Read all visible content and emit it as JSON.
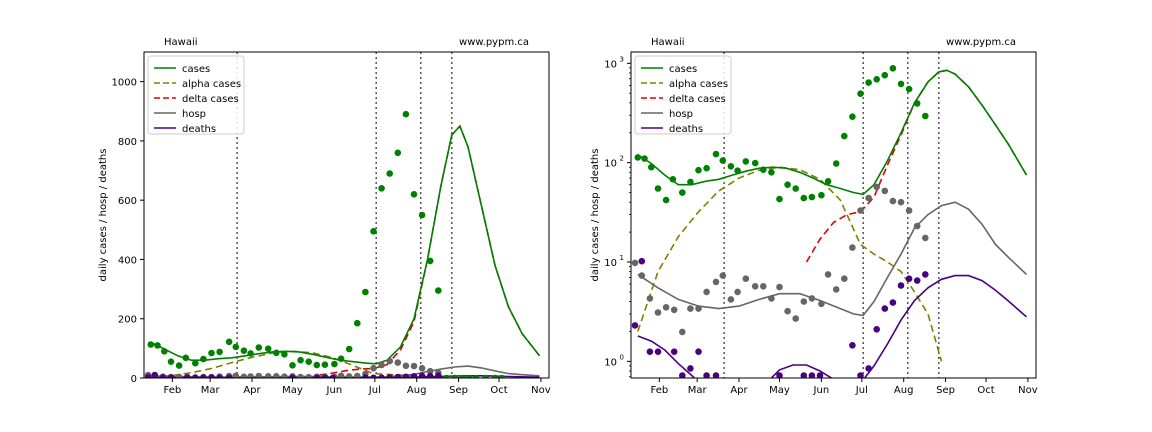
{
  "chart_data": [
    {
      "type": "line",
      "scale": "linear",
      "corner_left": "Hawaii",
      "corner_right": "www.pypm.ca",
      "ylabel": "daily cases / hosp / deaths",
      "ylim": [
        0,
        1100
      ],
      "yticks": [
        0,
        200,
        400,
        600,
        800,
        1000
      ],
      "xlim": [
        0,
        300
      ],
      "x_tick_positions": [
        21,
        49,
        80,
        110,
        141,
        171,
        202,
        233,
        263,
        294
      ],
      "x_tick_labels": [
        "Feb",
        "Mar",
        "Apr",
        "May",
        "Jun",
        "Jul",
        "Aug",
        "Sep",
        "Oct",
        "Nov"
      ],
      "vlines": [
        69,
        172,
        205,
        228
      ],
      "legend_position": "upper left",
      "legend": [
        "cases",
        "alpha cases",
        "delta cases",
        "hosp",
        "deaths"
      ],
      "colors": {
        "cases": "#008000",
        "alpha cases": "#808000",
        "delta cases": "#e00000",
        "hosp": "#666666",
        "deaths": "#4b0082"
      },
      "series": [
        {
          "name": "cases",
          "style": "solid",
          "x": [
            5,
            15,
            25,
            35,
            45,
            55,
            65,
            75,
            85,
            95,
            105,
            115,
            125,
            135,
            145,
            155,
            165,
            172,
            180,
            190,
            200,
            210,
            220,
            228,
            234,
            240,
            250,
            260,
            270,
            280,
            293
          ],
          "y": [
            120,
            98,
            75,
            60,
            60,
            65,
            68,
            75,
            82,
            88,
            90,
            88,
            80,
            70,
            60,
            55,
            50,
            48,
            60,
            105,
            200,
            400,
            650,
            820,
            850,
            780,
            580,
            380,
            240,
            150,
            75
          ]
        },
        {
          "name": "alpha cases",
          "style": "dashed",
          "x": [
            5,
            20,
            35,
            50,
            65,
            80,
            95,
            110,
            125,
            140,
            155,
            170,
            180,
            190,
            200,
            210,
            220,
            230,
            240
          ],
          "y": [
            2,
            8,
            18,
            32,
            52,
            70,
            84,
            90,
            85,
            68,
            42,
            15,
            12,
            10,
            8,
            5,
            3,
            1,
            0
          ]
        },
        {
          "name": "delta cases",
          "style": "dashed",
          "x": [
            130,
            140,
            150,
            160,
            170,
            180,
            190,
            200,
            210,
            220,
            228,
            234,
            240,
            250,
            260,
            270,
            280,
            293
          ],
          "y": [
            10,
            17,
            25,
            30,
            32,
            45,
            95,
            190,
            400,
            650,
            820,
            850,
            780,
            580,
            380,
            240,
            150,
            75
          ]
        },
        {
          "name": "hosp",
          "style": "solid",
          "x": [
            5,
            20,
            35,
            50,
            65,
            80,
            95,
            110,
            125,
            140,
            155,
            165,
            172,
            180,
            190,
            200,
            210,
            220,
            230,
            240,
            250,
            260,
            270,
            280,
            293
          ],
          "y": [
            7.5,
            5.5,
            4.2,
            3.6,
            3.4,
            3.6,
            4.2,
            4.8,
            4.8,
            4.1,
            3.4,
            3.0,
            2.9,
            4.0,
            7.0,
            12.0,
            22.0,
            30.0,
            37.0,
            40.0,
            34.0,
            24.0,
            15.0,
            11.0,
            7.5
          ]
        },
        {
          "name": "deaths",
          "style": "solid",
          "x": [
            5,
            15,
            25,
            35,
            45,
            50,
            58,
            66,
            74,
            82,
            90,
            100,
            110,
            120,
            130,
            140,
            150,
            160,
            168,
            172,
            180,
            190,
            200,
            210,
            220,
            230,
            240,
            250,
            260,
            270,
            280,
            293
          ],
          "y": [
            1.8,
            1.6,
            1.3,
            0.95,
            0.72,
            0.62,
            0.5,
            0.4,
            0.33,
            0.33,
            0.4,
            0.6,
            0.82,
            0.92,
            0.92,
            0.8,
            0.66,
            0.6,
            0.62,
            0.65,
            0.9,
            1.5,
            2.6,
            4.1,
            5.5,
            6.7,
            7.3,
            7.3,
            6.5,
            5.2,
            4.0,
            2.8
          ]
        }
      ],
      "points": [
        {
          "name": "cases",
          "x": [
            5,
            10,
            15,
            20,
            26,
            31,
            38,
            44,
            50,
            56,
            63,
            68,
            74,
            79,
            85,
            92,
            98,
            104,
            110,
            116,
            122,
            128,
            134,
            141,
            146,
            152,
            158,
            164,
            170,
            176,
            182,
            188,
            194,
            200,
            206,
            212,
            218,
            224,
            230,
            236,
            241,
            246,
            253,
            260,
            265
          ],
          "y": [
            113,
            110,
            90,
            55,
            42,
            68,
            50,
            64,
            84,
            88,
            122,
            105,
            92,
            83,
            103,
            99,
            85,
            80,
            43,
            60,
            55,
            44,
            45,
            47,
            65,
            98,
            185,
            290,
            495,
            640,
            690,
            760,
            890,
            620,
            550,
            395,
            295,
            0,
            0,
            0,
            0,
            0,
            0,
            0,
            0
          ]
        },
        {
          "name": "hosp",
          "x": [
            3,
            8,
            14,
            20,
            26,
            32,
            38,
            44,
            50,
            56,
            63,
            68,
            74,
            79,
            85,
            92,
            98,
            104,
            110,
            116,
            122,
            128,
            134,
            141,
            146,
            152,
            158,
            164,
            170,
            176,
            182,
            188,
            194,
            200,
            206,
            212,
            218
          ],
          "y": [
            9.8,
            7.3,
            4.3,
            3.1,
            3.5,
            3.3,
            1.98,
            3.4,
            3.4,
            5.0,
            6.3,
            7.3,
            4.2,
            5.0,
            6.8,
            5.7,
            5.7,
            4.3,
            5.6,
            3.2,
            2.7,
            4.0,
            4.3,
            3.8,
            7.5,
            5.3,
            6.8,
            14.0,
            33.0,
            44.0,
            57.0,
            52.0,
            41.0,
            40.0,
            33.0,
            23.0,
            17.5
          ]
        },
        {
          "name": "deaths",
          "x": [
            3,
            8,
            14,
            20,
            32,
            38,
            44,
            50,
            56,
            63,
            110,
            128,
            134,
            140,
            164,
            170,
            176,
            182,
            188,
            194,
            200,
            206,
            212,
            218
          ],
          "y": [
            2.3,
            10.2,
            1.25,
            1.25,
            1.25,
            0.72,
            0.85,
            1.25,
            0.72,
            0.72,
            0.72,
            0.72,
            0.72,
            0.72,
            1.45,
            0.72,
            0.85,
            2.1,
            3.4,
            3.9,
            5.8,
            6.8,
            6.5,
            7.5
          ]
        }
      ]
    },
    {
      "type": "line",
      "scale": "log",
      "corner_left": "Hawaii",
      "corner_right": "www.pypm.ca",
      "ylabel": "daily cases / hosp / deaths",
      "ylim": [
        0.68,
        1300
      ],
      "yticks": [
        1,
        10,
        100,
        1000
      ],
      "ytick_labels": [
        "10",
        "10",
        "10",
        "10"
      ],
      "ytick_exponents": [
        "0",
        "1",
        "2",
        "3"
      ],
      "xlim": [
        0,
        300
      ],
      "x_tick_positions": [
        21,
        49,
        80,
        110,
        141,
        171,
        202,
        233,
        263,
        294
      ],
      "x_tick_labels": [
        "Feb",
        "Mar",
        "Apr",
        "May",
        "Jun",
        "Jul",
        "Aug",
        "Sep",
        "Oct",
        "Nov"
      ],
      "vlines": [
        69,
        172,
        205,
        228
      ],
      "legend_position": "upper left",
      "legend": [
        "cases",
        "alpha cases",
        "delta cases",
        "hosp",
        "deaths"
      ],
      "colors": {
        "cases": "#008000",
        "alpha cases": "#808000",
        "delta cases": "#e00000",
        "hosp": "#666666",
        "deaths": "#4b0082"
      }
    }
  ]
}
